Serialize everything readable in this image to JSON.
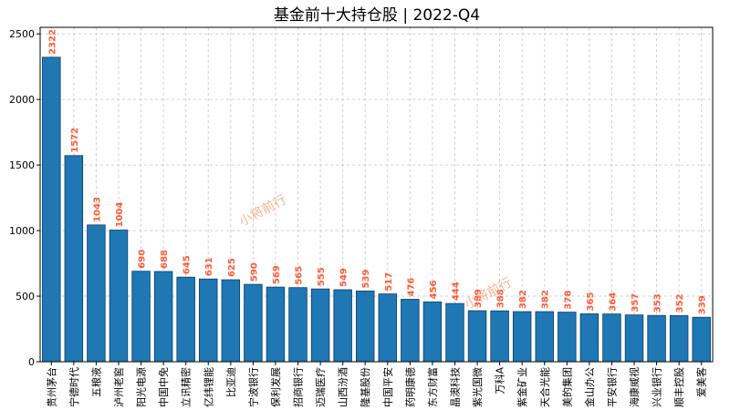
{
  "chart_data": {
    "type": "bar",
    "title": "基金前十大持仓股 | 2022-Q4",
    "xlabel": "",
    "ylabel": "",
    "ylim": [
      0,
      2550
    ],
    "yticks": [
      0,
      500,
      1000,
      1500,
      2000,
      2500
    ],
    "grid": true,
    "categories": [
      "贵州茅台",
      "宁德时代",
      "五粮液",
      "泸州老窖",
      "阳光电源",
      "中国中免",
      "立讯精密",
      "亿纬锂能",
      "比亚迪",
      "宁波银行",
      "保利发展",
      "招商银行",
      "迈瑞医疗",
      "山西汾酒",
      "隆基股份",
      "中国平安",
      "药明康德",
      "东方财富",
      "晶澳科技",
      "紫光国微",
      "万科A",
      "紫金矿业",
      "天合光能",
      "美的集团",
      "金山办公",
      "平安银行",
      "海康威视",
      "兴业银行",
      "顺丰控股",
      "爱美客"
    ],
    "values": [
      2322,
      1572,
      1043,
      1004,
      690,
      688,
      645,
      631,
      625,
      590,
      569,
      565,
      555,
      549,
      539,
      517,
      476,
      456,
      444,
      389,
      388,
      382,
      382,
      378,
      365,
      364,
      357,
      353,
      352,
      339
    ],
    "watermarks": [
      "小将前行",
      "小将前行"
    ],
    "colors": {
      "bar": "#1f77b4",
      "label": "#ff5a36",
      "watermark": "#f4a582",
      "grid": "#cfcfcf"
    }
  }
}
